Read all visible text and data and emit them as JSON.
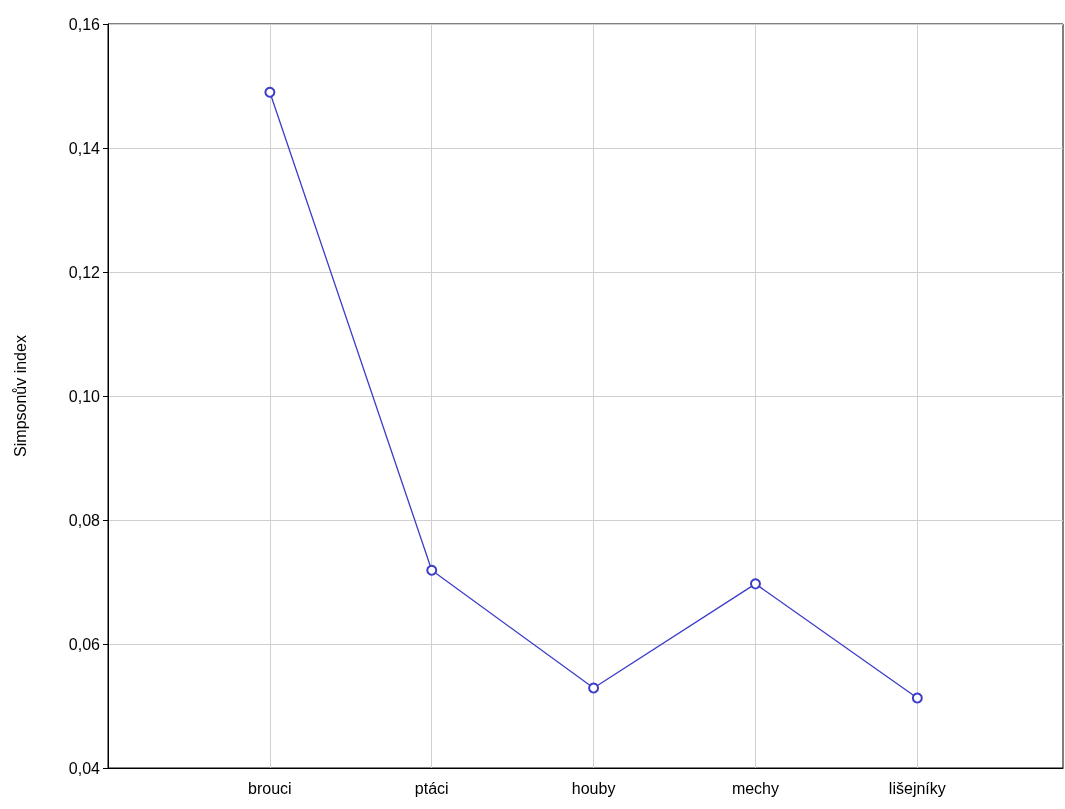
{
  "chart_data": {
    "type": "line",
    "ylabel": "Simpsonův index",
    "categories": [
      "brouci",
      "ptáci",
      "houby",
      "mechy",
      "lišejníky"
    ],
    "series": [
      {
        "color": "#3c3cc8",
        "values": [
          0.149,
          0.0719,
          0.0529,
          0.0697,
          0.0513
        ]
      }
    ],
    "ylim": [
      0.04,
      0.16
    ],
    "yticks": [
      {
        "value": 0.04,
        "label": "0,04"
      },
      {
        "value": 0.06,
        "label": "0,06"
      },
      {
        "value": 0.08,
        "label": "0,08"
      },
      {
        "value": 0.1,
        "label": "0,10"
      },
      {
        "value": 0.12,
        "label": "0,12"
      },
      {
        "value": 0.14,
        "label": "0,14"
      },
      {
        "value": 0.16,
        "label": "0,16"
      }
    ],
    "grid": true,
    "marker": "circle",
    "line_style": "solid"
  }
}
